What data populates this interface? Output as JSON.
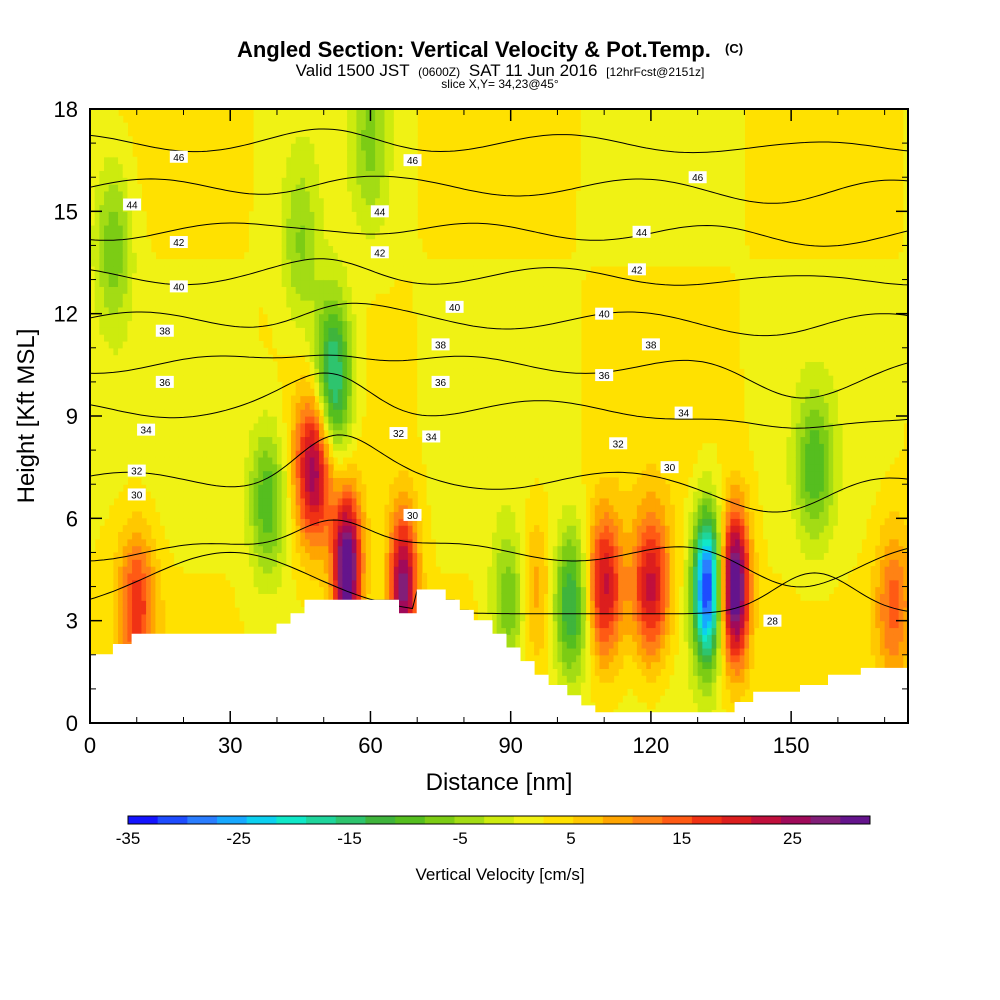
{
  "header": {
    "title_main": "Angled Section: Vertical Velocity & Pot.Temp.",
    "title_unit": "(C)",
    "sub_valid": "Valid 1500 JST",
    "sub_zulu": "(0600Z)",
    "sub_date": "SAT 11 Jun 2016",
    "sub_fcst": "[12hrFcst@2151z]",
    "slice": "slice X,Y= 34,23@45°"
  },
  "chart_data": {
    "type": "heatmap",
    "xlabel": "Distance [nm]",
    "ylabel": "Height [Kft MSL]",
    "xlim": [
      0,
      175
    ],
    "ylim": [
      0,
      18
    ],
    "xticks": [
      0,
      30,
      60,
      90,
      120,
      150
    ],
    "yticks": [
      0,
      3,
      6,
      9,
      12,
      15,
      18
    ],
    "grid": false,
    "colorbar": {
      "label": "Vertical Velocity [cm/s]",
      "range": [
        -35,
        32
      ],
      "ticks": [
        -35,
        -25,
        -15,
        -5,
        5,
        15,
        25
      ],
      "colors": [
        "#1414ff",
        "#1e4cff",
        "#2a7dff",
        "#17a8ff",
        "#0cd0f0",
        "#10e8c8",
        "#1fd59c",
        "#2ec46e",
        "#3fb43c",
        "#55be1f",
        "#7ccc14",
        "#a3dc14",
        "#cdeb0e",
        "#f0f214",
        "#ffe100",
        "#ffc800",
        "#ffa500",
        "#ff8214",
        "#ff5a14",
        "#f03214",
        "#dc1e1e",
        "#c00f3c",
        "#a00a5a",
        "#821e78",
        "#64148c"
      ]
    },
    "terrain_profile": [
      [
        0,
        2.0
      ],
      [
        5,
        2.0
      ],
      [
        5,
        2.3
      ],
      [
        9,
        2.3
      ],
      [
        9,
        2.6
      ],
      [
        40,
        2.6
      ],
      [
        40,
        2.9
      ],
      [
        43,
        2.9
      ],
      [
        43,
        3.2
      ],
      [
        46,
        3.2
      ],
      [
        46,
        3.6
      ],
      [
        66,
        3.6
      ],
      [
        66,
        3.2
      ],
      [
        70,
        3.2
      ],
      [
        70,
        3.9
      ],
      [
        76,
        3.9
      ],
      [
        76,
        3.6
      ],
      [
        79,
        3.6
      ],
      [
        79,
        3.3
      ],
      [
        82,
        3.3
      ],
      [
        82,
        3.0
      ],
      [
        86,
        3.0
      ],
      [
        86,
        2.6
      ],
      [
        89,
        2.6
      ],
      [
        89,
        2.2
      ],
      [
        92,
        2.2
      ],
      [
        92,
        1.8
      ],
      [
        95,
        1.8
      ],
      [
        95,
        1.4
      ],
      [
        98,
        1.4
      ],
      [
        98,
        1.1
      ],
      [
        102,
        1.1
      ],
      [
        102,
        0.8
      ],
      [
        105,
        0.8
      ],
      [
        105,
        0.5
      ],
      [
        108,
        0.5
      ],
      [
        108,
        0.3
      ],
      [
        138,
        0.3
      ],
      [
        138,
        0.6
      ],
      [
        142,
        0.6
      ],
      [
        142,
        0.9
      ],
      [
        152,
        0.9
      ],
      [
        152,
        1.1
      ],
      [
        158,
        1.1
      ],
      [
        158,
        1.4
      ],
      [
        165,
        1.4
      ],
      [
        165,
        1.6
      ],
      [
        175,
        1.6
      ]
    ],
    "updrafts": [
      {
        "x": 48,
        "z": 7.5,
        "w": 24
      },
      {
        "x": 55,
        "z": 4.5,
        "w": 32
      },
      {
        "x": 67,
        "z": 4.0,
        "w": 26
      },
      {
        "x": 110,
        "z": 4.0,
        "w": 20
      },
      {
        "x": 120,
        "z": 4.0,
        "w": 20
      },
      {
        "x": 138,
        "z": 4.0,
        "w": 32
      },
      {
        "x": 10,
        "z": 3.5,
        "w": 15
      },
      {
        "x": 95,
        "z": 4.0,
        "w": 8
      },
      {
        "x": 172,
        "z": 3.5,
        "w": 12
      }
    ],
    "downdrafts": [
      {
        "x": 52,
        "z": 10.0,
        "w": -22
      },
      {
        "x": 132,
        "z": 4.0,
        "w": -35
      },
      {
        "x": 103,
        "z": 3.5,
        "w": -17
      },
      {
        "x": 90,
        "z": 3.5,
        "w": -12
      },
      {
        "x": 38,
        "z": 6.5,
        "w": -13
      },
      {
        "x": 155,
        "z": 7.5,
        "w": -12
      },
      {
        "x": 5,
        "z": 14.0,
        "w": -10
      },
      {
        "x": 60,
        "z": 17.0,
        "w": -8
      },
      {
        "x": 45,
        "z": 14.0,
        "w": -8
      }
    ],
    "isentropes": [
      28,
      30,
      32,
      34,
      36,
      38,
      40,
      42,
      44,
      46
    ],
    "isentrope_labels": [
      {
        "value": "46",
        "x": 19,
        "z": 16.6
      },
      {
        "value": "46",
        "x": 69,
        "z": 16.5
      },
      {
        "value": "46",
        "x": 130,
        "z": 16.0
      },
      {
        "value": "44",
        "x": 9,
        "z": 15.2
      },
      {
        "value": "44",
        "x": 62,
        "z": 15.0
      },
      {
        "value": "44",
        "x": 118,
        "z": 14.4
      },
      {
        "value": "42",
        "x": 19,
        "z": 14.1
      },
      {
        "value": "42",
        "x": 62,
        "z": 13.8
      },
      {
        "value": "42",
        "x": 117,
        "z": 13.3
      },
      {
        "value": "40",
        "x": 19,
        "z": 12.8
      },
      {
        "value": "40",
        "x": 78,
        "z": 12.2
      },
      {
        "value": "40",
        "x": 110,
        "z": 12.0
      },
      {
        "value": "38",
        "x": 16,
        "z": 11.5
      },
      {
        "value": "38",
        "x": 75,
        "z": 11.1
      },
      {
        "value": "38",
        "x": 120,
        "z": 11.1
      },
      {
        "value": "36",
        "x": 16,
        "z": 10.0
      },
      {
        "value": "36",
        "x": 75,
        "z": 10.0
      },
      {
        "value": "36",
        "x": 110,
        "z": 10.2
      },
      {
        "value": "34",
        "x": 12,
        "z": 8.6
      },
      {
        "value": "34",
        "x": 73,
        "z": 8.4
      },
      {
        "value": "34",
        "x": 127,
        "z": 9.1
      },
      {
        "value": "32",
        "x": 10,
        "z": 7.4
      },
      {
        "value": "32",
        "x": 66,
        "z": 8.5
      },
      {
        "value": "32",
        "x": 113,
        "z": 8.2
      },
      {
        "value": "30",
        "x": 10,
        "z": 6.7
      },
      {
        "value": "30",
        "x": 69,
        "z": 6.1
      },
      {
        "value": "30",
        "x": 124,
        "z": 7.5
      },
      {
        "value": "28",
        "x": 146,
        "z": 3.0
      }
    ]
  }
}
